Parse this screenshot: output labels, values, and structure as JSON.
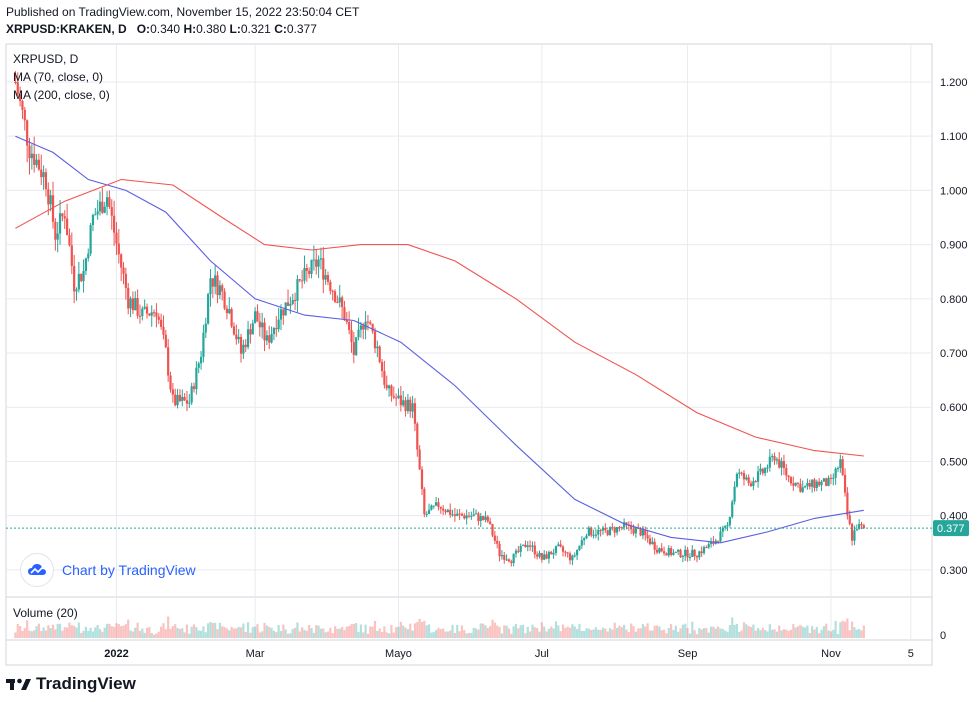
{
  "header": {
    "published": "Published on TradingView.com, November 15, 2022 23:50:04 CET",
    "symbol": "XRPUSD:KRAKEN, D",
    "o_label": "O:",
    "o_value": "0.340",
    "h_label": "H:",
    "h_value": "0.380",
    "l_label": "L:",
    "l_value": "0.321",
    "c_label": "C:",
    "c_value": "0.377"
  },
  "legend": {
    "title": "XRPUSD, D",
    "ma70": "MA (70, close, 0)",
    "ma200": "MA (200, close, 0)",
    "volume": "Volume (20)"
  },
  "watermark": "Chart by TradingView",
  "footer_logo": "TradingView",
  "last_price_label": "0.377",
  "colors": {
    "up": "#26a69a",
    "down": "#ef5350",
    "ma70": "#5b5fe0",
    "ma200": "#f05350",
    "grid": "#e8eaef",
    "brand": "#2962ff"
  },
  "chart_data": {
    "type": "candlestick",
    "title": "XRPUSD, D",
    "y_ticks": [
      "1.200",
      "1.100",
      "1.000",
      "0.900",
      "0.800",
      "0.700",
      "0.600",
      "0.500",
      "0.400",
      "0.300"
    ],
    "x_ticks": [
      "2022",
      "Mar",
      "Mayo",
      "Jul",
      "Sep",
      "Nov",
      "5"
    ],
    "ylim": [
      0.25,
      1.27
    ],
    "grid": true,
    "close_points": [
      {
        "date": "2021-11-19",
        "close": 1.2
      },
      {
        "date": "2021-11-25",
        "close": 1.08
      },
      {
        "date": "2021-12-02",
        "close": 1.02
      },
      {
        "date": "2021-12-06",
        "close": 0.92
      },
      {
        "date": "2021-12-10",
        "close": 0.96
      },
      {
        "date": "2021-12-14",
        "close": 0.83
      },
      {
        "date": "2021-12-18",
        "close": 0.85
      },
      {
        "date": "2021-12-22",
        "close": 0.95
      },
      {
        "date": "2021-12-28",
        "close": 0.99
      },
      {
        "date": "2022-01-02",
        "close": 0.88
      },
      {
        "date": "2022-01-06",
        "close": 0.8
      },
      {
        "date": "2022-01-12",
        "close": 0.77
      },
      {
        "date": "2022-01-18",
        "close": 0.78
      },
      {
        "date": "2022-01-22",
        "close": 0.7
      },
      {
        "date": "2022-01-25",
        "close": 0.61
      },
      {
        "date": "2022-02-01",
        "close": 0.61
      },
      {
        "date": "2022-02-06",
        "close": 0.7
      },
      {
        "date": "2022-02-10",
        "close": 0.84
      },
      {
        "date": "2022-02-14",
        "close": 0.82
      },
      {
        "date": "2022-02-18",
        "close": 0.78
      },
      {
        "date": "2022-02-23",
        "close": 0.7
      },
      {
        "date": "2022-03-01",
        "close": 0.77
      },
      {
        "date": "2022-03-06",
        "close": 0.72
      },
      {
        "date": "2022-03-11",
        "close": 0.77
      },
      {
        "date": "2022-03-16",
        "close": 0.8
      },
      {
        "date": "2022-03-22",
        "close": 0.84
      },
      {
        "date": "2022-03-28",
        "close": 0.87
      },
      {
        "date": "2022-04-03",
        "close": 0.82
      },
      {
        "date": "2022-04-08",
        "close": 0.77
      },
      {
        "date": "2022-04-12",
        "close": 0.7
      },
      {
        "date": "2022-04-17",
        "close": 0.77
      },
      {
        "date": "2022-04-22",
        "close": 0.71
      },
      {
        "date": "2022-04-26",
        "close": 0.63
      },
      {
        "date": "2022-05-02",
        "close": 0.61
      },
      {
        "date": "2022-05-07",
        "close": 0.6
      },
      {
        "date": "2022-05-10",
        "close": 0.48
      },
      {
        "date": "2022-05-12",
        "close": 0.4
      },
      {
        "date": "2022-05-18",
        "close": 0.42
      },
      {
        "date": "2022-05-25",
        "close": 0.4
      },
      {
        "date": "2022-06-02",
        "close": 0.4
      },
      {
        "date": "2022-06-08",
        "close": 0.39
      },
      {
        "date": "2022-06-13",
        "close": 0.33
      },
      {
        "date": "2022-06-18",
        "close": 0.32
      },
      {
        "date": "2022-06-25",
        "close": 0.35
      },
      {
        "date": "2022-07-01",
        "close": 0.32
      },
      {
        "date": "2022-07-08",
        "close": 0.34
      },
      {
        "date": "2022-07-14",
        "close": 0.32
      },
      {
        "date": "2022-07-20",
        "close": 0.37
      },
      {
        "date": "2022-07-28",
        "close": 0.37
      },
      {
        "date": "2022-08-05",
        "close": 0.38
      },
      {
        "date": "2022-08-12",
        "close": 0.37
      },
      {
        "date": "2022-08-19",
        "close": 0.34
      },
      {
        "date": "2022-08-26",
        "close": 0.33
      },
      {
        "date": "2022-09-05",
        "close": 0.33
      },
      {
        "date": "2022-09-12",
        "close": 0.35
      },
      {
        "date": "2022-09-18",
        "close": 0.38
      },
      {
        "date": "2022-09-22",
        "close": 0.48
      },
      {
        "date": "2022-09-27",
        "close": 0.46
      },
      {
        "date": "2022-10-03",
        "close": 0.48
      },
      {
        "date": "2022-10-08",
        "close": 0.51
      },
      {
        "date": "2022-10-14",
        "close": 0.47
      },
      {
        "date": "2022-10-20",
        "close": 0.45
      },
      {
        "date": "2022-10-26",
        "close": 0.46
      },
      {
        "date": "2022-11-01",
        "close": 0.46
      },
      {
        "date": "2022-11-05",
        "close": 0.5
      },
      {
        "date": "2022-11-08",
        "close": 0.4
      },
      {
        "date": "2022-11-10",
        "close": 0.36
      },
      {
        "date": "2022-11-12",
        "close": 0.38
      },
      {
        "date": "2022-11-15",
        "close": 0.377
      }
    ],
    "series": [
      {
        "name": "MA (70, close, 0)",
        "points": [
          {
            "date": "2021-11-19",
            "value": 1.1
          },
          {
            "date": "2021-12-05",
            "value": 1.07
          },
          {
            "date": "2021-12-20",
            "value": 1.02
          },
          {
            "date": "2022-01-05",
            "value": 1.0
          },
          {
            "date": "2022-01-22",
            "value": 0.96
          },
          {
            "date": "2022-02-10",
            "value": 0.87
          },
          {
            "date": "2022-03-01",
            "value": 0.8
          },
          {
            "date": "2022-03-22",
            "value": 0.77
          },
          {
            "date": "2022-04-12",
            "value": 0.76
          },
          {
            "date": "2022-05-02",
            "value": 0.72
          },
          {
            "date": "2022-05-25",
            "value": 0.64
          },
          {
            "date": "2022-06-20",
            "value": 0.53
          },
          {
            "date": "2022-07-15",
            "value": 0.43
          },
          {
            "date": "2022-08-05",
            "value": 0.385
          },
          {
            "date": "2022-08-25",
            "value": 0.36
          },
          {
            "date": "2022-09-15",
            "value": 0.35
          },
          {
            "date": "2022-10-05",
            "value": 0.37
          },
          {
            "date": "2022-10-25",
            "value": 0.395
          },
          {
            "date": "2022-11-15",
            "value": 0.41
          }
        ]
      },
      {
        "name": "MA (200, close, 0)",
        "points": [
          {
            "date": "2021-11-19",
            "value": 0.93
          },
          {
            "date": "2021-12-10",
            "value": 0.98
          },
          {
            "date": "2022-01-03",
            "value": 1.02
          },
          {
            "date": "2022-01-25",
            "value": 1.01
          },
          {
            "date": "2022-02-15",
            "value": 0.95
          },
          {
            "date": "2022-03-05",
            "value": 0.9
          },
          {
            "date": "2022-03-25",
            "value": 0.89
          },
          {
            "date": "2022-04-15",
            "value": 0.9
          },
          {
            "date": "2022-05-05",
            "value": 0.9
          },
          {
            "date": "2022-05-25",
            "value": 0.87
          },
          {
            "date": "2022-06-20",
            "value": 0.8
          },
          {
            "date": "2022-07-15",
            "value": 0.72
          },
          {
            "date": "2022-08-10",
            "value": 0.66
          },
          {
            "date": "2022-09-05",
            "value": 0.59
          },
          {
            "date": "2022-09-30",
            "value": 0.545
          },
          {
            "date": "2022-10-25",
            "value": 0.52
          },
          {
            "date": "2022-11-15",
            "value": 0.51
          }
        ]
      }
    ],
    "last_close": 0.377
  }
}
